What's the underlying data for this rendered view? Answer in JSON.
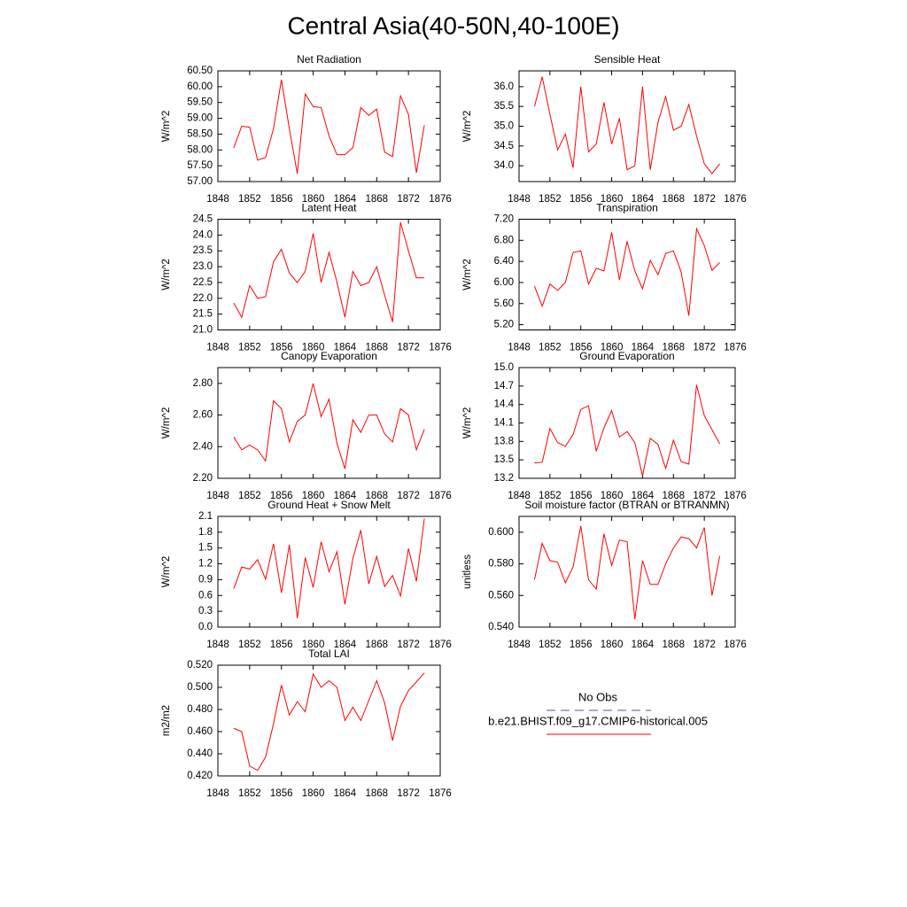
{
  "title": "Central Asia(40-50N,40-100E)",
  "legend": [
    {
      "name": "No Obs",
      "color": "#55559a",
      "dash": true
    },
    {
      "name": "b.e21.BHIST.f09_g17.CMIP6-historical.005",
      "color": "#ff0000",
      "dash": false
    }
  ],
  "chart_data": [
    {
      "type": "line",
      "title": "Net Radiation",
      "ylabel": "W/m^2",
      "color": "#ff0000",
      "x": [
        1850,
        1851,
        1852,
        1853,
        1854,
        1855,
        1856,
        1857,
        1858,
        1859,
        1860,
        1861,
        1862,
        1863,
        1864,
        1865,
        1866,
        1867,
        1868,
        1869,
        1870,
        1871,
        1872,
        1873,
        1874
      ],
      "values": [
        58.07,
        58.75,
        58.72,
        57.68,
        57.76,
        58.67,
        60.22,
        58.67,
        57.25,
        59.77,
        59.37,
        59.34,
        58.44,
        57.85,
        57.85,
        58.07,
        59.34,
        59.09,
        59.29,
        57.93,
        57.79,
        59.71,
        59.12,
        57.28,
        58.78
      ],
      "xlim": [
        1848,
        1876
      ],
      "xticks": [
        1848,
        1852,
        1856,
        1860,
        1864,
        1868,
        1872,
        1876
      ],
      "ylim": [
        57,
        60.5
      ],
      "yticks": [
        {
          "value": 57,
          "label": "57.00"
        },
        {
          "value": 57.5,
          "label": "57.50"
        },
        {
          "value": 58,
          "label": "58.00"
        },
        {
          "value": 58.5,
          "label": "58.50"
        },
        {
          "value": 59,
          "label": "59.00"
        },
        {
          "value": 59.5,
          "label": "59.50"
        },
        {
          "value": 60,
          "label": "60.00"
        },
        {
          "value": 60.5,
          "label": "60.50"
        }
      ]
    },
    {
      "type": "line",
      "title": "Sensible Heat",
      "ylabel": "W/m^2",
      "color": "#ff0000",
      "x": [
        1850,
        1851,
        1852,
        1853,
        1854,
        1855,
        1856,
        1857,
        1858,
        1859,
        1860,
        1861,
        1862,
        1863,
        1864,
        1865,
        1866,
        1867,
        1868,
        1869,
        1870,
        1871,
        1872,
        1873,
        1874
      ],
      "values": [
        35.5,
        36.25,
        35.3,
        34.4,
        34.8,
        33.95,
        36.0,
        34.35,
        34.55,
        35.6,
        34.55,
        35.2,
        33.9,
        34.0,
        36.0,
        33.9,
        35.1,
        35.75,
        34.9,
        35.0,
        35.55,
        34.75,
        34.05,
        33.8,
        34.05
      ],
      "xlim": [
        1848,
        1876
      ],
      "xticks": [
        1848,
        1852,
        1856,
        1860,
        1864,
        1868,
        1872,
        1876
      ],
      "ylim": [
        33.6,
        36.4
      ],
      "yticks": [
        {
          "value": 34,
          "label": "34.0"
        },
        34.5,
        {
          "value": 35,
          "label": "35.0"
        },
        35.5,
        {
          "value": 36,
          "label": "36.0"
        }
      ]
    },
    {
      "type": "line",
      "title": "Latent Heat",
      "ylabel": "W/m^2",
      "color": "#ff0000",
      "x": [
        1850,
        1851,
        1852,
        1853,
        1854,
        1855,
        1856,
        1857,
        1858,
        1859,
        1860,
        1861,
        1862,
        1863,
        1864,
        1865,
        1866,
        1867,
        1868,
        1869,
        1870,
        1871,
        1872,
        1873,
        1874
      ],
      "values": [
        21.85,
        21.4,
        22.4,
        22.0,
        22.05,
        23.15,
        23.55,
        22.8,
        22.5,
        22.85,
        24.05,
        22.5,
        23.45,
        22.5,
        21.4,
        22.85,
        22.4,
        22.5,
        23.0,
        22.1,
        21.25,
        24.4,
        23.5,
        22.65,
        22.65
      ],
      "xlim": [
        1848,
        1876
      ],
      "xticks": [
        1848,
        1852,
        1856,
        1860,
        1864,
        1868,
        1872,
        1876
      ],
      "ylim": [
        21,
        24.5
      ],
      "yticks": [
        {
          "value": 21,
          "label": "21.0"
        },
        21.5,
        {
          "value": 22,
          "label": "22.0"
        },
        22.5,
        {
          "value": 23,
          "label": "23.0"
        },
        23.5,
        {
          "value": 24,
          "label": "24.0"
        },
        24.5
      ]
    },
    {
      "type": "line",
      "title": "Transpiration",
      "ylabel": "W/m^2",
      "color": "#ff0000",
      "x": [
        1850,
        1851,
        1852,
        1853,
        1854,
        1855,
        1856,
        1857,
        1858,
        1859,
        1860,
        1861,
        1862,
        1863,
        1864,
        1865,
        1866,
        1867,
        1868,
        1869,
        1870,
        1871,
        1872,
        1873,
        1874
      ],
      "values": [
        5.93,
        5.55,
        5.97,
        5.85,
        6.0,
        6.57,
        6.6,
        5.97,
        6.27,
        6.22,
        6.95,
        6.05,
        6.78,
        6.22,
        5.88,
        6.42,
        6.15,
        6.55,
        6.6,
        6.2,
        5.37,
        7.02,
        6.7,
        6.23,
        6.38
      ],
      "xlim": [
        1848,
        1876
      ],
      "xticks": [
        1848,
        1852,
        1856,
        1860,
        1864,
        1868,
        1872,
        1876
      ],
      "ylim": [
        5.1,
        7.2
      ],
      "yticks": [
        {
          "value": 5.2,
          "label": "5.20"
        },
        {
          "value": 5.6,
          "label": "5.60"
        },
        {
          "value": 6,
          "label": "6.00"
        },
        {
          "value": 6.4,
          "label": "6.40"
        },
        {
          "value": 6.8,
          "label": "6.80"
        },
        {
          "value": 7.2,
          "label": "7.20"
        }
      ]
    },
    {
      "type": "line",
      "title": "Canopy Evaporation",
      "ylabel": "W/m^2",
      "color": "#ff0000",
      "x": [
        1850,
        1851,
        1852,
        1853,
        1854,
        1855,
        1856,
        1857,
        1858,
        1859,
        1860,
        1861,
        1862,
        1863,
        1864,
        1865,
        1866,
        1867,
        1868,
        1869,
        1870,
        1871,
        1872,
        1873,
        1874
      ],
      "values": [
        2.46,
        2.38,
        2.41,
        2.38,
        2.31,
        2.69,
        2.64,
        2.43,
        2.56,
        2.6,
        2.8,
        2.59,
        2.7,
        2.42,
        2.26,
        2.57,
        2.49,
        2.6,
        2.6,
        2.48,
        2.43,
        2.64,
        2.6,
        2.38,
        2.51
      ],
      "xlim": [
        1848,
        1876
      ],
      "xticks": [
        1848,
        1852,
        1856,
        1860,
        1864,
        1868,
        1872,
        1876
      ],
      "ylim": [
        2.2,
        2.9
      ],
      "yticks": [
        {
          "value": 2.2,
          "label": "2.20"
        },
        {
          "value": 2.4,
          "label": "2.40"
        },
        {
          "value": 2.6,
          "label": "2.60"
        },
        {
          "value": 2.8,
          "label": "2.80"
        }
      ]
    },
    {
      "type": "line",
      "title": "Ground Evaporation",
      "ylabel": "W/m^2",
      "color": "#ff0000",
      "x": [
        1850,
        1851,
        1852,
        1853,
        1854,
        1855,
        1856,
        1857,
        1858,
        1859,
        1860,
        1861,
        1862,
        1863,
        1864,
        1865,
        1866,
        1867,
        1868,
        1869,
        1870,
        1871,
        1872,
        1873,
        1874
      ],
      "values": [
        13.45,
        13.46,
        14.01,
        13.78,
        13.72,
        13.91,
        14.32,
        14.38,
        13.64,
        14.02,
        14.3,
        13.87,
        13.96,
        13.78,
        13.24,
        13.85,
        13.75,
        13.36,
        13.82,
        13.47,
        13.43,
        14.72,
        14.22,
        13.99,
        13.76
      ],
      "xlim": [
        1848,
        1876
      ],
      "xticks": [
        1848,
        1852,
        1856,
        1860,
        1864,
        1868,
        1872,
        1876
      ],
      "ylim": [
        13.2,
        15
      ],
      "yticks": [
        13.2,
        13.5,
        13.8,
        14.1,
        14.4,
        14.7,
        {
          "value": 15,
          "label": "15.0"
        }
      ]
    },
    {
      "type": "line",
      "title": "Ground Heat + Snow Melt",
      "ylabel": "W/m^2",
      "color": "#ff0000",
      "x": [
        1850,
        1851,
        1852,
        1853,
        1854,
        1855,
        1856,
        1857,
        1858,
        1859,
        1860,
        1861,
        1862,
        1863,
        1864,
        1865,
        1866,
        1867,
        1868,
        1869,
        1870,
        1871,
        1872,
        1873,
        1874
      ],
      "values": [
        0.73,
        1.14,
        1.1,
        1.28,
        0.91,
        1.58,
        0.65,
        1.56,
        0.17,
        1.32,
        0.75,
        1.62,
        1.05,
        1.43,
        0.43,
        1.3,
        1.84,
        0.82,
        1.34,
        0.77,
        0.98,
        0.59,
        1.49,
        0.87,
        2.06
      ],
      "xlim": [
        1848,
        1876
      ],
      "xticks": [
        1848,
        1852,
        1856,
        1860,
        1864,
        1868,
        1872,
        1876
      ],
      "ylim": [
        0,
        2.1
      ],
      "yticks": [
        {
          "value": 0,
          "label": "0.0"
        },
        0.3,
        0.6,
        0.9,
        1.2,
        1.5,
        1.8,
        2.1
      ]
    },
    {
      "type": "line",
      "title": "Soil moisture factor (BTRAN or BTRANMN)",
      "ylabel": "unitless",
      "color": "#ff0000",
      "x": [
        1850,
        1851,
        1852,
        1853,
        1854,
        1855,
        1856,
        1857,
        1858,
        1859,
        1860,
        1861,
        1862,
        1863,
        1864,
        1865,
        1866,
        1867,
        1868,
        1869,
        1870,
        1871,
        1872,
        1873,
        1874
      ],
      "values": [
        0.57,
        0.593,
        0.582,
        0.581,
        0.568,
        0.578,
        0.604,
        0.57,
        0.564,
        0.599,
        0.579,
        0.595,
        0.594,
        0.545,
        0.582,
        0.567,
        0.567,
        0.58,
        0.59,
        0.597,
        0.596,
        0.59,
        0.603,
        0.56,
        0.585
      ],
      "xlim": [
        1848,
        1876
      ],
      "xticks": [
        1848,
        1852,
        1856,
        1860,
        1864,
        1868,
        1872,
        1876
      ],
      "ylim": [
        0.54,
        0.61
      ],
      "yticks": [
        {
          "value": 0.54,
          "label": "0.540"
        },
        {
          "value": 0.56,
          "label": "0.560"
        },
        {
          "value": 0.58,
          "label": "0.580"
        },
        {
          "value": 0.6,
          "label": "0.600"
        }
      ]
    },
    {
      "type": "line",
      "title": "Total LAI",
      "ylabel": "m2/m2",
      "color": "#ff0000",
      "x": [
        1850,
        1851,
        1852,
        1853,
        1854,
        1855,
        1856,
        1857,
        1858,
        1859,
        1860,
        1861,
        1862,
        1863,
        1864,
        1865,
        1866,
        1867,
        1868,
        1869,
        1870,
        1871,
        1872,
        1873,
        1874
      ],
      "values": [
        0.463,
        0.46,
        0.429,
        0.425,
        0.437,
        0.467,
        0.502,
        0.475,
        0.487,
        0.478,
        0.512,
        0.5,
        0.506,
        0.5,
        0.47,
        0.482,
        0.47,
        0.488,
        0.506,
        0.486,
        0.452,
        0.483,
        0.497,
        0.505,
        0.513
      ],
      "xlim": [
        1848,
        1876
      ],
      "xticks": [
        1848,
        1852,
        1856,
        1860,
        1864,
        1868,
        1872,
        1876
      ],
      "ylim": [
        0.42,
        0.52
      ],
      "yticks": [
        {
          "value": 0.42,
          "label": "0.420"
        },
        {
          "value": 0.44,
          "label": "0.440"
        },
        {
          "value": 0.46,
          "label": "0.460"
        },
        {
          "value": 0.48,
          "label": "0.480"
        },
        {
          "value": 0.5,
          "label": "0.500"
        },
        {
          "value": 0.52,
          "label": "0.520"
        }
      ]
    }
  ]
}
